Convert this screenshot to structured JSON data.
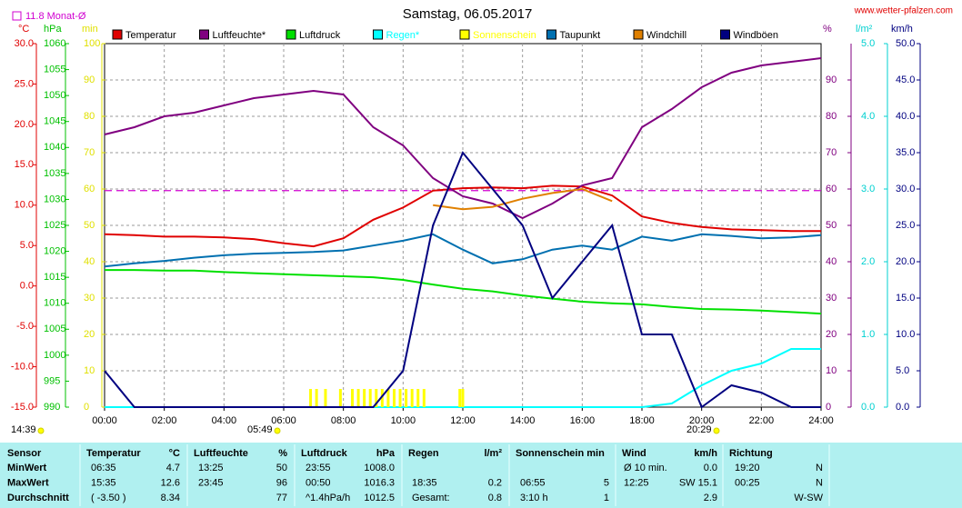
{
  "chart_data": {
    "type": "line",
    "title": "Samstag, 06.05.2017",
    "site": "www.wetter-pfalzen.com",
    "monthly_avg": {
      "value": 11.8,
      "label": "11.8 Monat-Ø",
      "color": "#d000d0"
    },
    "time_labels": [
      "14:39",
      "05:49",
      "20:29"
    ],
    "x": [
      0,
      1,
      2,
      3,
      4,
      5,
      6,
      7,
      8,
      9,
      10,
      11,
      12,
      13,
      14,
      15,
      16,
      17,
      18,
      19,
      20,
      21,
      22,
      23,
      24
    ],
    "xlim": [
      0,
      24
    ],
    "xticks": [
      {
        "value": 0,
        "label": "00:00"
      },
      {
        "value": 2,
        "label": "02:00"
      },
      {
        "value": 4,
        "label": "04:00"
      },
      {
        "value": 6,
        "label": "06:00"
      },
      {
        "value": 8,
        "label": "08:00"
      },
      {
        "value": 10,
        "label": "10:00"
      },
      {
        "value": 12,
        "label": "12:00"
      },
      {
        "value": 14,
        "label": "14:00"
      },
      {
        "value": 16,
        "label": "16:00"
      },
      {
        "value": 18,
        "label": "18:00"
      },
      {
        "value": 20,
        "label": "20:00"
      },
      {
        "value": 22,
        "label": "22:00"
      },
      {
        "value": 24,
        "label": "24:00"
      }
    ],
    "grid": true,
    "ylabel": "°C",
    "ycolor": "#e00000",
    "ylim": [
      -15,
      30
    ],
    "yticks": [
      {
        "value": -15,
        "label": "-15.0"
      },
      {
        "value": -10,
        "label": "-10.0"
      },
      {
        "value": -5,
        "label": "-5.0"
      },
      {
        "value": 0,
        "label": "0.0"
      },
      {
        "value": 5,
        "label": "5.0"
      },
      {
        "value": 10,
        "label": "10.0"
      },
      {
        "value": 15,
        "label": "15.0"
      },
      {
        "value": 20,
        "label": "20.0"
      },
      {
        "value": 25,
        "label": "25.0"
      },
      {
        "value": 30,
        "label": "30.0"
      }
    ],
    "y2label": "hPa",
    "y2color": "#00c000",
    "y2lim": [
      990,
      1060
    ],
    "y2ticks": [
      990,
      995,
      1000,
      1005,
      1010,
      1015,
      1020,
      1025,
      1030,
      1035,
      1040,
      1045,
      1050,
      1055,
      1060
    ],
    "y3label": "min",
    "y3color": "#e0e000",
    "y3lim": [
      0,
      100
    ],
    "y3ticks": [
      0,
      10,
      20,
      30,
      40,
      50,
      60,
      70,
      80,
      90,
      100
    ],
    "y4label": "%",
    "y4color": "#800080",
    "y4lim": [
      0,
      100
    ],
    "y4ticks": [
      0,
      10,
      20,
      30,
      40,
      50,
      60,
      70,
      80,
      90
    ],
    "y5label": "l/m²",
    "y5color": "#00d0d0",
    "y5lim": [
      0,
      5
    ],
    "y5ticks": [
      {
        "value": 0,
        "label": "0.0"
      },
      {
        "value": 1,
        "label": "1.0"
      },
      {
        "value": 2,
        "label": "2.0"
      },
      {
        "value": 3,
        "label": "3.0"
      },
      {
        "value": 4,
        "label": "4.0"
      },
      {
        "value": 5,
        "label": "5.0"
      }
    ],
    "y6label": "km/h",
    "y6color": "#000080",
    "y6lim": [
      0,
      50
    ],
    "y6ticks": [
      {
        "value": 0,
        "label": "0.0"
      },
      {
        "value": 5,
        "label": "5.0"
      },
      {
        "value": 10,
        "label": "10.0"
      },
      {
        "value": 15,
        "label": "15.0"
      },
      {
        "value": 20,
        "label": "20.0"
      },
      {
        "value": 25,
        "label": "25.0"
      },
      {
        "value": 30,
        "label": "30.0"
      },
      {
        "value": 35,
        "label": "35.0"
      },
      {
        "value": 40,
        "label": "40.0"
      },
      {
        "value": 45,
        "label": "45.0"
      },
      {
        "value": 50,
        "label": "50.0"
      }
    ],
    "series": [
      {
        "name": "Temperatur",
        "color": "#e00000",
        "axis": "y",
        "values": [
          6.4,
          6.3,
          6.1,
          6.1,
          6.0,
          5.8,
          5.3,
          4.9,
          5.9,
          8.2,
          9.7,
          11.8,
          12.1,
          12.2,
          12.1,
          12.4,
          12.3,
          11.2,
          8.6,
          7.8,
          7.3,
          7.0,
          6.9,
          6.8,
          6.8
        ]
      },
      {
        "name": "Luftfeuchte*",
        "color": "#800080",
        "axis": "y4",
        "values": [
          75,
          77,
          80,
          81,
          83,
          85,
          86,
          87,
          86,
          77,
          72,
          63,
          58,
          56,
          52,
          56,
          61,
          63,
          77,
          82,
          88,
          92,
          94,
          95,
          96
        ]
      },
      {
        "name": "Luftdruck",
        "color": "#00e000",
        "axis": "y2",
        "values": [
          1016.4,
          1016.4,
          1016.3,
          1016.3,
          1016.0,
          1015.8,
          1015.6,
          1015.4,
          1015.2,
          1015.0,
          1014.5,
          1013.6,
          1012.8,
          1012.3,
          1011.5,
          1010.9,
          1010.3,
          1010.0,
          1009.8,
          1009.3,
          1008.9,
          1008.8,
          1008.6,
          1008.3,
          1008.0
        ]
      },
      {
        "name": "Regen*",
        "color": "#00ffff",
        "axis": "y5",
        "values": [
          0,
          0,
          0,
          0,
          0,
          0,
          0,
          0,
          0,
          0,
          0,
          0,
          0,
          0,
          0,
          0,
          0,
          0,
          0,
          0.05,
          0.3,
          0.5,
          0.6,
          0.8,
          0.8
        ]
      },
      {
        "name": "Sonnenschein",
        "color": "#ffff00",
        "axis": "y3",
        "kind": "bars",
        "x": [
          6.9,
          7.1,
          7.4,
          7.9,
          8.3,
          8.5,
          8.7,
          8.9,
          9.1,
          9.3,
          9.5,
          9.7,
          9.9,
          10.1,
          10.3,
          10.5,
          10.7,
          11.9,
          12.0
        ],
        "values": [
          5,
          5,
          5,
          5,
          5,
          5,
          5,
          5,
          5,
          5,
          5,
          5,
          5,
          5,
          5,
          5,
          5,
          5,
          5
        ]
      },
      {
        "name": "Taupunkt",
        "color": "#0070b0",
        "axis": "y",
        "values": [
          2.4,
          2.8,
          3.1,
          3.5,
          3.8,
          4.0,
          4.1,
          4.2,
          4.4,
          5.0,
          5.6,
          6.4,
          4.5,
          2.8,
          3.3,
          4.5,
          5.0,
          4.5,
          6.1,
          5.6,
          6.4,
          6.2,
          5.9,
          6.0,
          6.3
        ]
      },
      {
        "name": "Windchill",
        "color": "#e08000",
        "axis": "y",
        "values": [
          null,
          null,
          null,
          null,
          null,
          null,
          null,
          null,
          null,
          null,
          null,
          10.0,
          9.5,
          9.8,
          10.8,
          11.5,
          12.0,
          10.5,
          null,
          null,
          null,
          null,
          null,
          null,
          null
        ]
      },
      {
        "name": "Windböen",
        "color": "#000080",
        "axis": "y6",
        "values": [
          5,
          0,
          0,
          0,
          0,
          0,
          0,
          0,
          0,
          0,
          5,
          25,
          35,
          30,
          25,
          15,
          20,
          25,
          10,
          10,
          0,
          3,
          2,
          0,
          0
        ]
      }
    ]
  },
  "table": {
    "header": [
      "Sensor",
      "Temperatur",
      "°C",
      "Luftfeuchte",
      "%",
      "Luftdruck",
      "hPa",
      "Regen",
      "l/m²",
      "Sonnenschein min",
      "Wind",
      "km/h",
      "Richtung"
    ],
    "rows": [
      {
        "label": "MinWert",
        "cells": [
          "06:35",
          "4.7",
          "13:25",
          "50",
          "23:55",
          "1008.0",
          null,
          null,
          null,
          null,
          "Ø 10 min.",
          "0.0",
          "19:20",
          "N"
        ]
      },
      {
        "label": "MaxWert",
        "cells": [
          "15:35",
          "12.6",
          "23:45",
          "96",
          "00:50",
          "1016.3",
          "18:35",
          "0.2",
          "06:55",
          "5",
          "12:25",
          "SW 15.1",
          "00:25",
          "N"
        ]
      },
      {
        "label": "Durchschnitt",
        "cells": [
          "( -3.50 )",
          "8.34",
          null,
          "77",
          "^1.4hPa/h",
          "1012.5",
          "Gesamt:",
          "0.8",
          "3:10 h",
          "1",
          null,
          "2.9",
          null,
          "W-SW"
        ]
      }
    ]
  }
}
